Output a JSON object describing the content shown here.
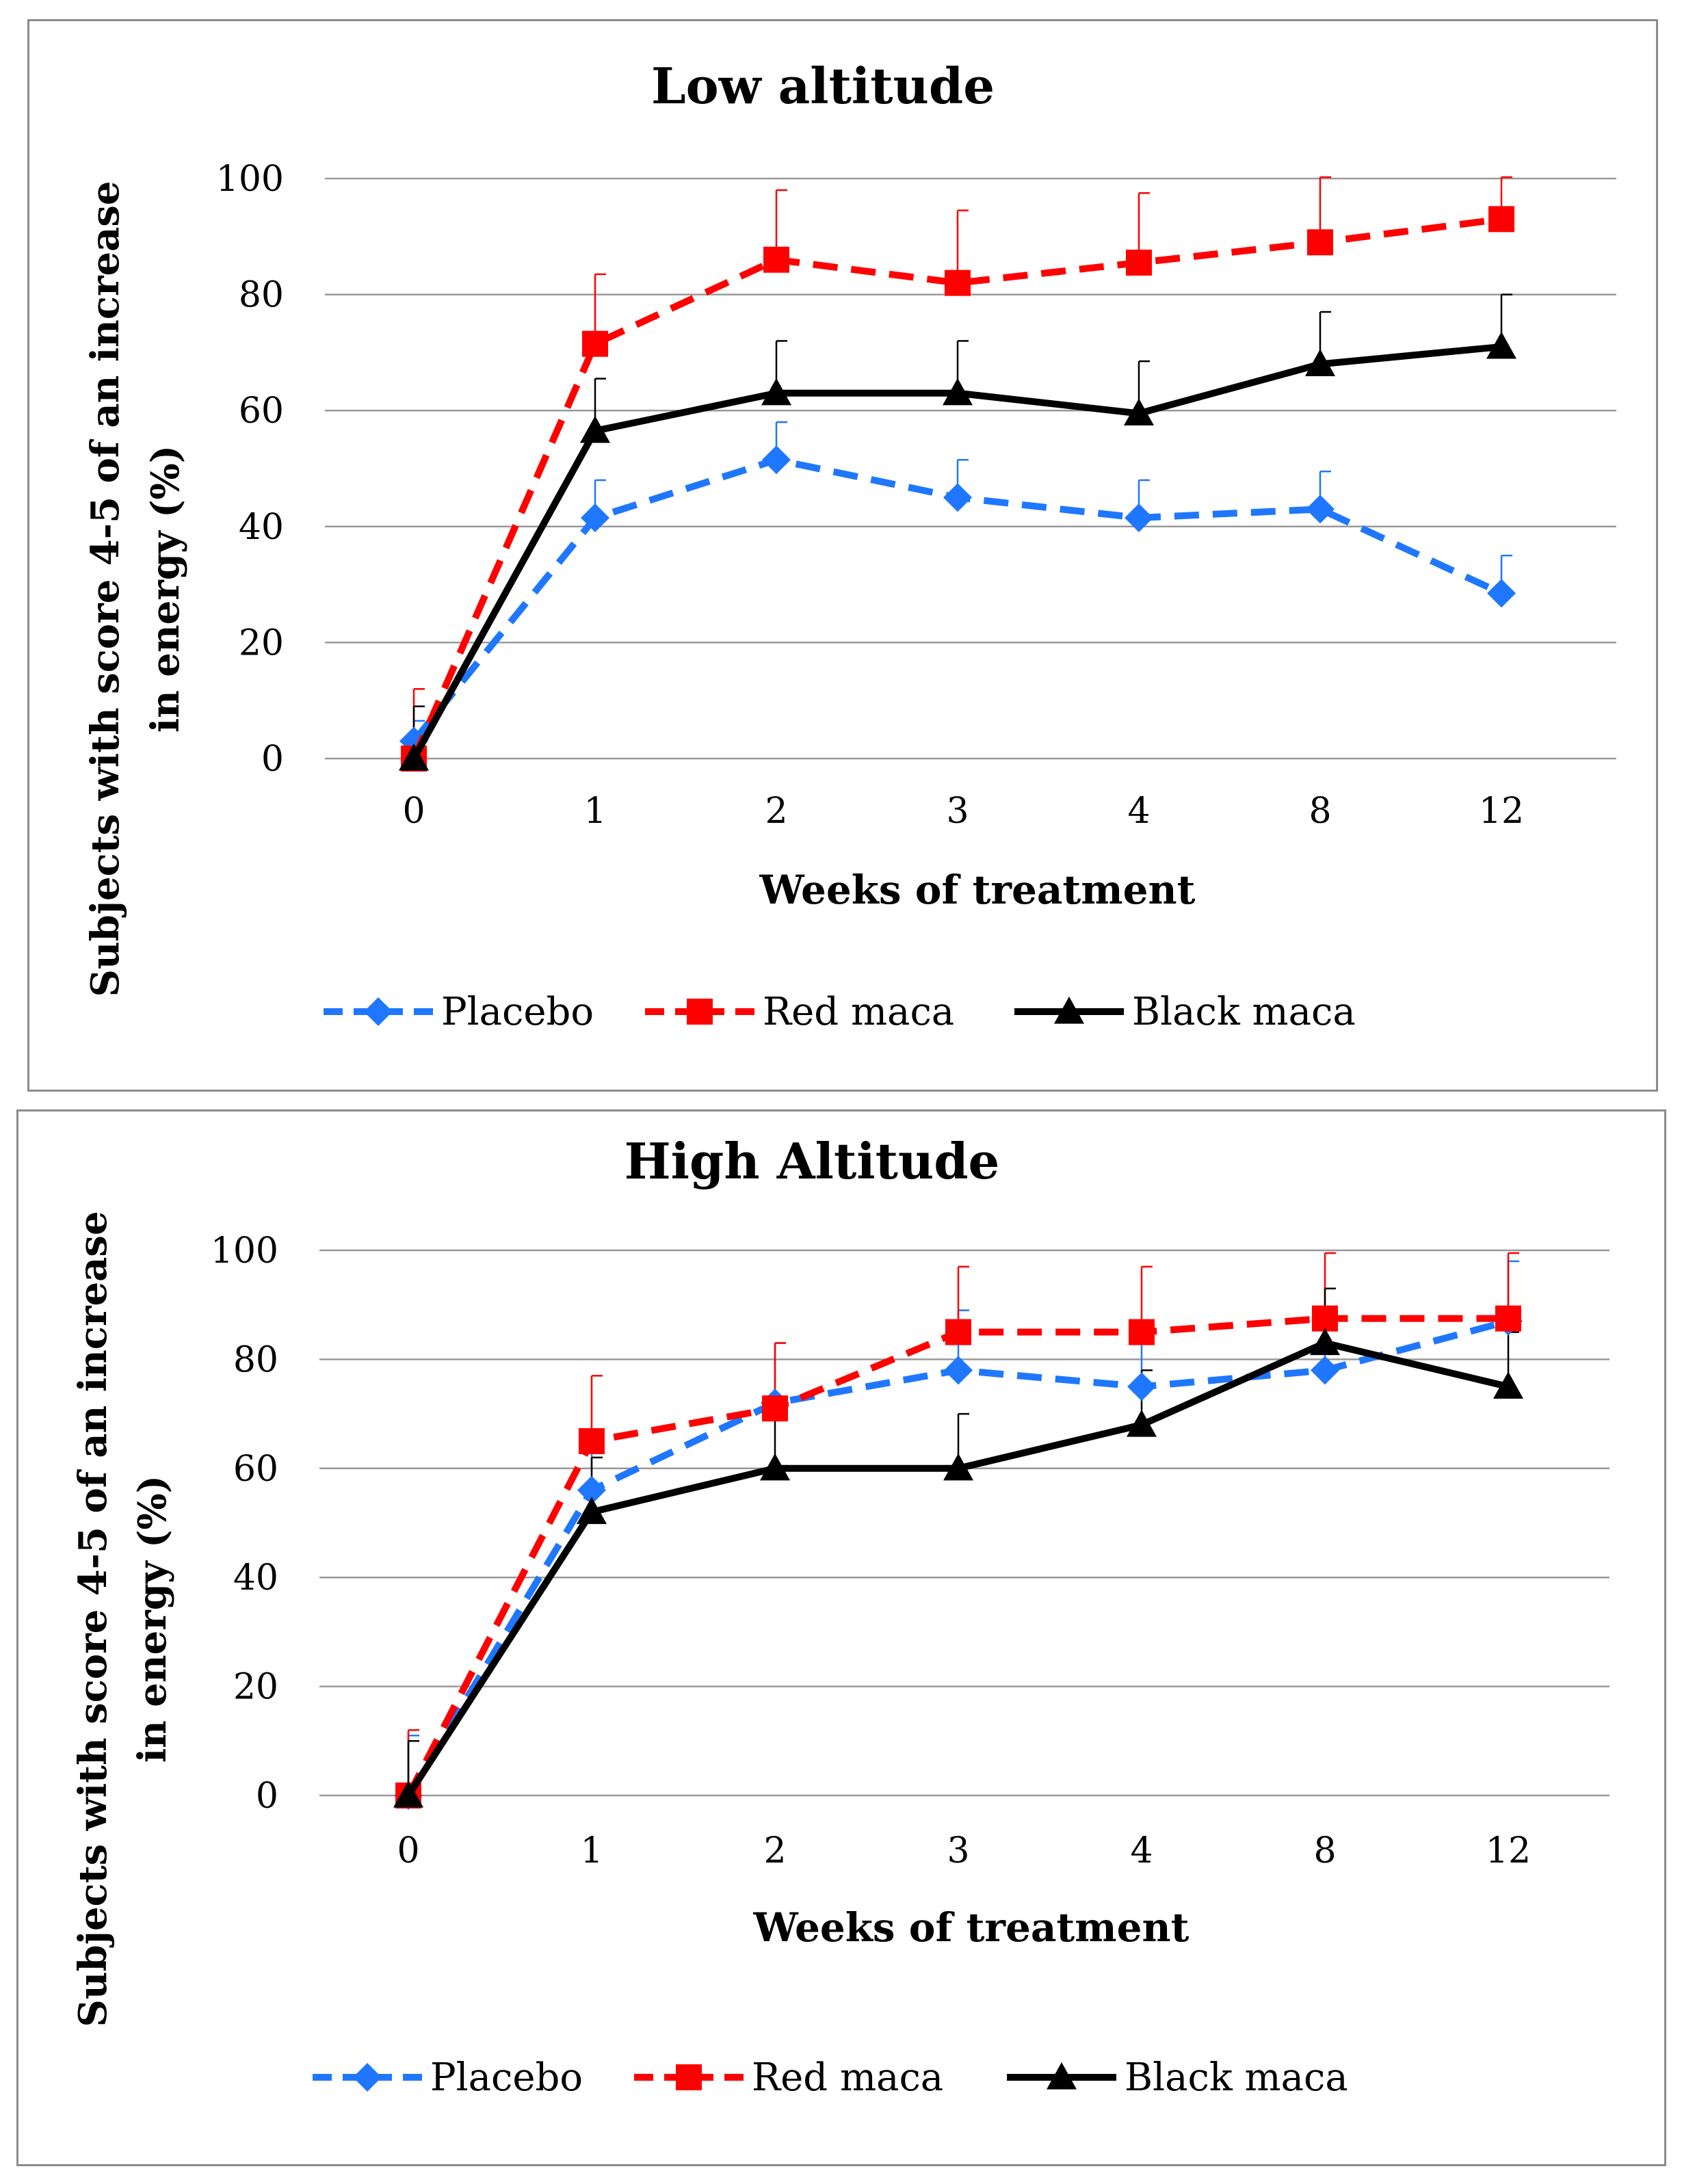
{
  "colors": {
    "placebo": "#1f77ff",
    "red_maca": "#ff0000",
    "black_maca": "#000000",
    "grid": "#999999",
    "border": "#8c8c8c"
  },
  "chart_data": [
    {
      "type": "line",
      "title": "Low altitude",
      "xlabel": "Weeks of treatment",
      "ylabel_line1": "Subjects with score 4-5 of an increase",
      "ylabel_line2": "in energy (%)",
      "categories": [
        "0",
        "1",
        "2",
        "3",
        "4",
        "8",
        "12"
      ],
      "yticks": [
        "0",
        "20",
        "40",
        "60",
        "80",
        "100"
      ],
      "ylim": [
        0,
        100
      ],
      "grid": true,
      "legend_position": "bottom",
      "series": [
        {
          "name": "Placebo",
          "key": "placebo",
          "marker": "diamond",
          "dashed": true,
          "values": [
            3,
            41.5,
            51.5,
            45,
            41.5,
            43,
            28.5
          ],
          "errors": [
            3.5,
            6.5,
            6.5,
            6.5,
            6.5,
            6.5,
            6.5
          ]
        },
        {
          "name": "Red maca",
          "key": "red_maca",
          "marker": "square",
          "dashed": true,
          "values": [
            0,
            71.5,
            86,
            82,
            85.5,
            89,
            93
          ],
          "errors": [
            12,
            12,
            12,
            12.5,
            12,
            12,
            10
          ]
        },
        {
          "name": "Black maca",
          "key": "black_maca",
          "marker": "triangle",
          "dashed": false,
          "values": [
            0,
            56.5,
            63,
            63,
            59.5,
            68,
            71
          ],
          "errors": [
            9,
            9,
            9,
            9,
            9,
            9,
            9
          ]
        }
      ]
    },
    {
      "type": "line",
      "title": "High Altitude",
      "xlabel": "Weeks of treatment",
      "ylabel_line1": "Subjects with score 4-5 of an increase",
      "ylabel_line2": "in energy (%)",
      "categories": [
        "0",
        "1",
        "2",
        "3",
        "4",
        "8",
        "12"
      ],
      "yticks": [
        "0",
        "20",
        "40",
        "60",
        "80",
        "100"
      ],
      "ylim": [
        0,
        100
      ],
      "grid": true,
      "legend_position": "bottom",
      "series": [
        {
          "name": "Placebo",
          "key": "placebo",
          "marker": "diamond",
          "dashed": true,
          "values": [
            0,
            56,
            72,
            78,
            75,
            78,
            87
          ],
          "errors": [
            11,
            11,
            11,
            11,
            11,
            11,
            11
          ]
        },
        {
          "name": "Red maca",
          "key": "red_maca",
          "marker": "square",
          "dashed": true,
          "values": [
            0,
            65,
            71,
            85,
            85,
            87.5,
            87.5
          ],
          "errors": [
            12,
            12,
            12,
            12,
            12,
            12,
            12
          ]
        },
        {
          "name": "Black maca",
          "key": "black_maca",
          "marker": "triangle",
          "dashed": false,
          "values": [
            0,
            52,
            60,
            60,
            68,
            83,
            75
          ],
          "errors": [
            10,
            10,
            10,
            10,
            10,
            10,
            10
          ]
        }
      ]
    }
  ]
}
